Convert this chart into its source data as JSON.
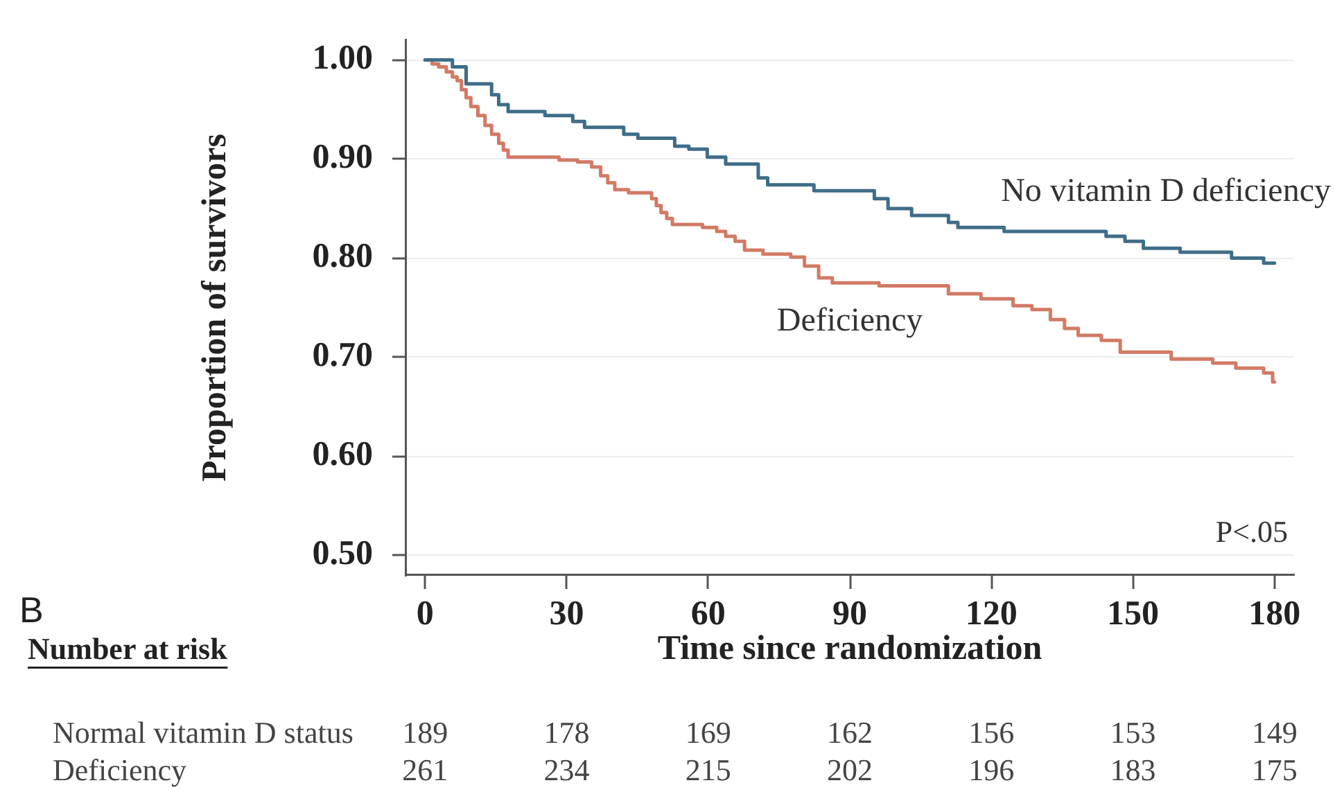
{
  "chart_data": {
    "type": "step",
    "xlabel": "Time since randomization",
    "ylabel": "Proportion of survivors",
    "xlim": [
      -4,
      184
    ],
    "xticks": [
      0,
      30,
      60,
      90,
      120,
      150,
      180
    ],
    "ylim": [
      0.48,
      1.02
    ],
    "yticks": [
      {
        "value": 0.5,
        "label": "0.50"
      },
      {
        "value": 0.6,
        "label": "0.60"
      },
      {
        "value": 0.7,
        "label": "0.70"
      },
      {
        "value": 0.8,
        "label": "0.80"
      },
      {
        "value": 0.9,
        "label": "0.90"
      },
      {
        "value": 1,
        "label": "1.00"
      }
    ],
    "grid": "y",
    "legend": false,
    "series": [
      {
        "name": "No vitamin D deficiency",
        "color": "#3f6d88",
        "x": [
          0,
          5.8,
          8.7,
          14.1,
          15.6,
          17.6,
          25.4,
          31.3,
          33.8,
          42.1,
          45.1,
          52.9,
          55.9,
          59.8,
          63.7,
          70.6,
          72.6,
          82.4,
          95.2,
          98.1,
          103.1,
          110.9,
          112.9,
          122.7,
          144.3,
          148.3,
          152.2,
          160,
          170.9,
          177.7,
          180
        ],
        "values": [
          1,
          0.993,
          0.976,
          0.965,
          0.955,
          0.948,
          0.944,
          0.938,
          0.932,
          0.925,
          0.921,
          0.913,
          0.91,
          0.902,
          0.895,
          0.881,
          0.874,
          0.868,
          0.86,
          0.85,
          0.843,
          0.836,
          0.831,
          0.827,
          0.822,
          0.817,
          0.81,
          0.806,
          0.8,
          0.795,
          0.795
        ]
      },
      {
        "name": "Deficiency",
        "color": "#d27a64",
        "x": [
          0,
          1.5,
          2.9,
          4.5,
          5.8,
          6.8,
          7.7,
          8.7,
          9.7,
          11.2,
          12.7,
          14.1,
          15.6,
          16.6,
          17.6,
          28.4,
          32.3,
          35.3,
          37.2,
          38.7,
          40.2,
          43.1,
          48,
          49,
          50,
          51.2,
          52.4,
          58.8,
          61.8,
          63.7,
          65.7,
          67.7,
          71.6,
          77.5,
          80.4,
          83.4,
          86.3,
          96.2,
          110.9,
          117.8,
          124.6,
          128.6,
          132.5,
          135.5,
          138.4,
          143.3,
          147.3,
          158.1,
          166.9,
          171.8,
          177.7,
          179.6,
          180
        ],
        "values": [
          1,
          0.996,
          0.993,
          0.988,
          0.983,
          0.979,
          0.97,
          0.962,
          0.953,
          0.944,
          0.934,
          0.925,
          0.916,
          0.909,
          0.902,
          0.899,
          0.897,
          0.892,
          0.883,
          0.876,
          0.869,
          0.866,
          0.86,
          0.853,
          0.846,
          0.84,
          0.834,
          0.831,
          0.827,
          0.822,
          0.817,
          0.808,
          0.804,
          0.801,
          0.792,
          0.78,
          0.775,
          0.772,
          0.764,
          0.759,
          0.752,
          0.748,
          0.738,
          0.729,
          0.722,
          0.717,
          0.705,
          0.698,
          0.694,
          0.689,
          0.684,
          0.675,
          0.675
        ]
      }
    ],
    "annotations": [
      "B",
      "P<.05",
      "Number at risk",
      "Normal vitamin D status",
      "189",
      "178",
      "169",
      "162",
      "156",
      "153",
      "149",
      "Deficiency",
      "261",
      "234",
      "215",
      "202",
      "196",
      "183",
      "175"
    ]
  }
}
